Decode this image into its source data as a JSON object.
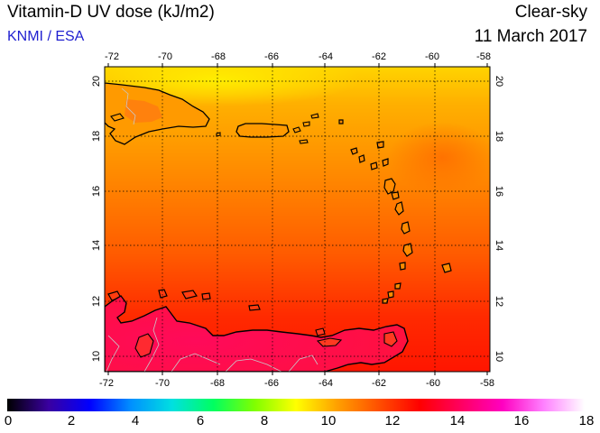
{
  "header": {
    "title": "Vitamin-D UV dose (kJ/m2)",
    "credit": "KNMI / ESA",
    "sky_type": "Clear-sky",
    "date": "11 March 2017"
  },
  "map": {
    "lon_range": [
      -72,
      -58
    ],
    "lat_range": [
      9.5,
      20.5
    ],
    "lon_ticks": [
      "-72",
      "-70",
      "-68",
      "-66",
      "-64",
      "-62",
      "-60",
      "-58"
    ],
    "lat_ticks": [
      "10",
      "12",
      "14",
      "16",
      "18",
      "20"
    ],
    "grid": true,
    "gridline_style": "dotted"
  },
  "colorbar": {
    "min": 0,
    "max": 18,
    "labels": [
      "0",
      "2",
      "4",
      "6",
      "8",
      "10",
      "12",
      "14",
      "16",
      "18"
    ],
    "colors": [
      "#000000",
      "#3a00a0",
      "#0000ff",
      "#0090ff",
      "#00e0e0",
      "#00ff60",
      "#80ff00",
      "#ffff00",
      "#ffa000",
      "#ff5000",
      "#ff0000",
      "#ff0060",
      "#ff00c0",
      "#ff80ff",
      "#ffffff"
    ]
  },
  "colors": {
    "coastline": "#000000",
    "borders": "#c8c8c8",
    "title_text": "#000000",
    "credit_text": "#1f1fd0"
  }
}
